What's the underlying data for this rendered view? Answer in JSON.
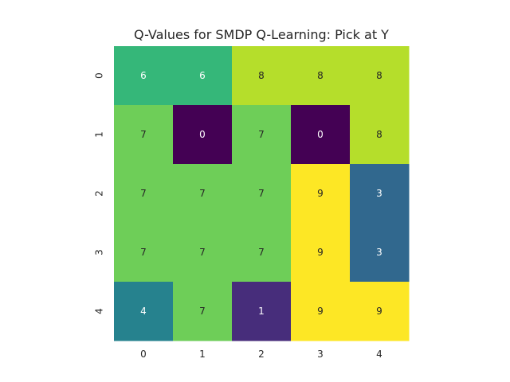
{
  "chart_data": {
    "type": "heatmap",
    "title": "Q-Values for SMDP Q-Learning: Pick at Y",
    "xlabel": "",
    "ylabel": "",
    "x_ticks": [
      "0",
      "1",
      "2",
      "3",
      "4"
    ],
    "y_ticks": [
      "0",
      "1",
      "2",
      "3",
      "4"
    ],
    "values": [
      [
        6,
        6,
        8,
        8,
        8
      ],
      [
        7,
        0,
        7,
        0,
        8
      ],
      [
        7,
        7,
        7,
        9,
        3
      ],
      [
        7,
        7,
        7,
        9,
        3
      ],
      [
        4,
        7,
        1,
        9,
        9
      ]
    ],
    "annotated": true,
    "colormap": "viridis",
    "vmin": 0,
    "vmax": 9,
    "colors": {
      "0": "#440154",
      "1": "#472d7b",
      "3": "#31688e",
      "4": "#26828e",
      "6": "#35b779",
      "7": "#6ece58",
      "8": "#b5de2b",
      "9": "#fde725"
    },
    "light_text_color": "#ffffff",
    "dark_text_color": "#262626"
  }
}
